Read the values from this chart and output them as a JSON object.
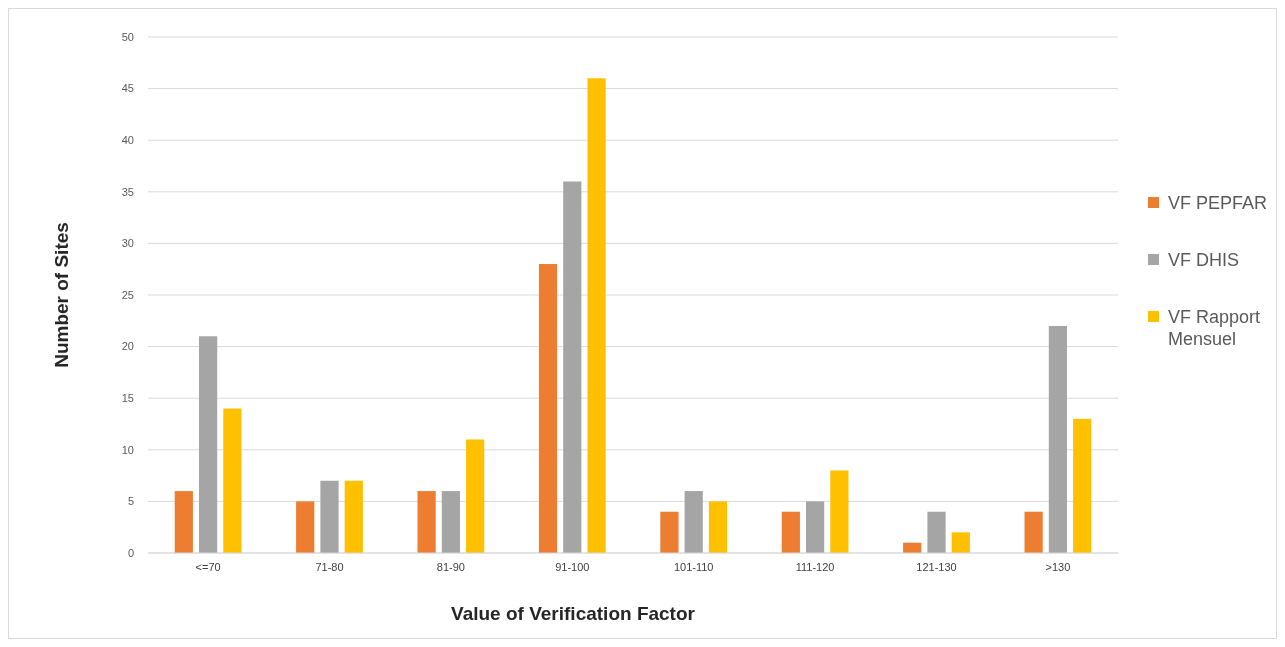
{
  "chart_data": {
    "type": "bar",
    "xlabel": "Value of Verification Factor",
    "ylabel": "Number of Sites",
    "categories": [
      "<=70",
      "71-80",
      "81-90",
      "91-100",
      "101-110",
      "111-120",
      "121-130",
      ">130"
    ],
    "series": [
      {
        "name": "VF PEPFAR",
        "color": "#ed7d31",
        "values": [
          6,
          5,
          6,
          28,
          4,
          4,
          1,
          4
        ]
      },
      {
        "name": "VF DHIS",
        "color": "#a5a5a5",
        "values": [
          21,
          7,
          6,
          36,
          6,
          5,
          4,
          22
        ]
      },
      {
        "name": "VF Rapport Mensuel",
        "color": "#ffc000",
        "values": [
          14,
          7,
          11,
          46,
          5,
          8,
          2,
          13
        ]
      }
    ],
    "ylim": [
      0,
      50
    ],
    "yticks": [
      0,
      5,
      10,
      15,
      20,
      25,
      30,
      35,
      40,
      45,
      50
    ],
    "grid": "y",
    "legend": "right"
  }
}
